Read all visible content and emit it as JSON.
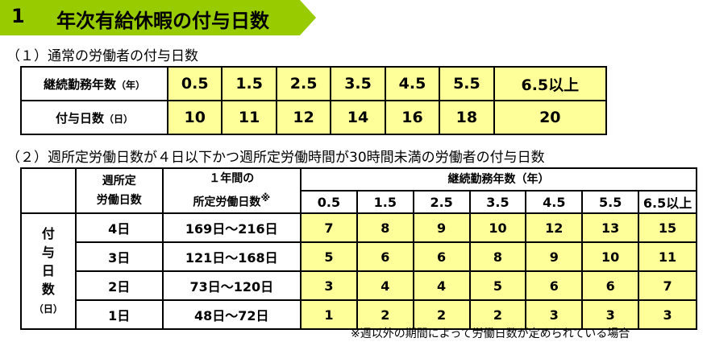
{
  "heading": {
    "number": "1",
    "title": "年次有給休暇の付与日数"
  },
  "section1": {
    "title": "（１）通常の労働者の付与日数",
    "row1_label": "継続勤務年数",
    "row1_unit": "（年）",
    "row2_label": "付与日数",
    "row2_unit": "（日）",
    "years": [
      "0.5",
      "1.5",
      "2.5",
      "3.5",
      "4.5",
      "5.5",
      "6.5以上"
    ],
    "days": [
      "10",
      "11",
      "12",
      "14",
      "16",
      "18",
      "20"
    ]
  },
  "section2": {
    "title": "（２）週所定労働日数が４日以下かつ週所定労働時間が30時間未満の労働者の付与日数",
    "col_week_1": "週所定",
    "col_week_2": "労働日数",
    "col_year_1": "１年間の",
    "col_year_2": "所定労働日数",
    "col_year_mark": "※",
    "years_header": "継続勤務年数（年）",
    "years": [
      "0.5",
      "1.5",
      "2.5",
      "3.5",
      "4.5",
      "5.5",
      "6.5以上"
    ],
    "side_chars": [
      "付",
      "与",
      "日",
      "数"
    ],
    "side_unit": "（日）",
    "rows": [
      {
        "week": "4日",
        "annual": "169日～216日",
        "days": [
          "7",
          "8",
          "9",
          "10",
          "12",
          "13",
          "15"
        ]
      },
      {
        "week": "3日",
        "annual": "121日～168日",
        "days": [
          "5",
          "6",
          "6",
          "8",
          "9",
          "10",
          "11"
        ]
      },
      {
        "week": "2日",
        "annual": "73日～120日",
        "days": [
          "3",
          "4",
          "4",
          "5",
          "6",
          "6",
          "7"
        ]
      },
      {
        "week": "1日",
        "annual": "48日～72日",
        "days": [
          "1",
          "2",
          "2",
          "2",
          "3",
          "3",
          "3"
        ]
      }
    ]
  },
  "footnote": "※週以外の期間によって労働日数が定められている場合"
}
